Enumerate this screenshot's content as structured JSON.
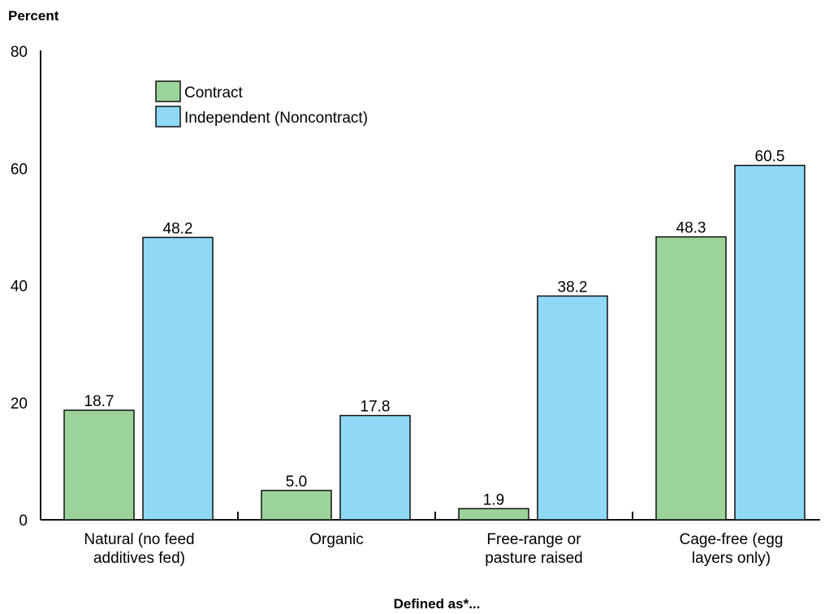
{
  "chart_data": {
    "type": "bar",
    "ylabel": "Percent",
    "xlabel": "Defined as*...",
    "ylim": [
      0,
      80
    ],
    "yticks": [
      0,
      20,
      40,
      60,
      80
    ],
    "categories": [
      [
        "Natural (no feed",
        "additives fed)"
      ],
      [
        "Organic"
      ],
      [
        "Free-range or",
        "pasture raised"
      ],
      [
        "Cage-free (egg",
        "layers only)"
      ]
    ],
    "series": [
      {
        "name": "Contract",
        "color": "#9bd39a",
        "values": [
          18.7,
          5.0,
          1.9,
          48.3
        ],
        "labels": [
          "18.7",
          "5.0",
          "1.9",
          "48.3"
        ]
      },
      {
        "name": "Independent (Noncontract)",
        "color": "#8fd8f6",
        "values": [
          48.2,
          17.8,
          38.2,
          60.5
        ],
        "labels": [
          "48.2",
          "17.8",
          "38.2",
          "60.5"
        ]
      }
    ],
    "legend_position": "top-left",
    "grid": false
  }
}
